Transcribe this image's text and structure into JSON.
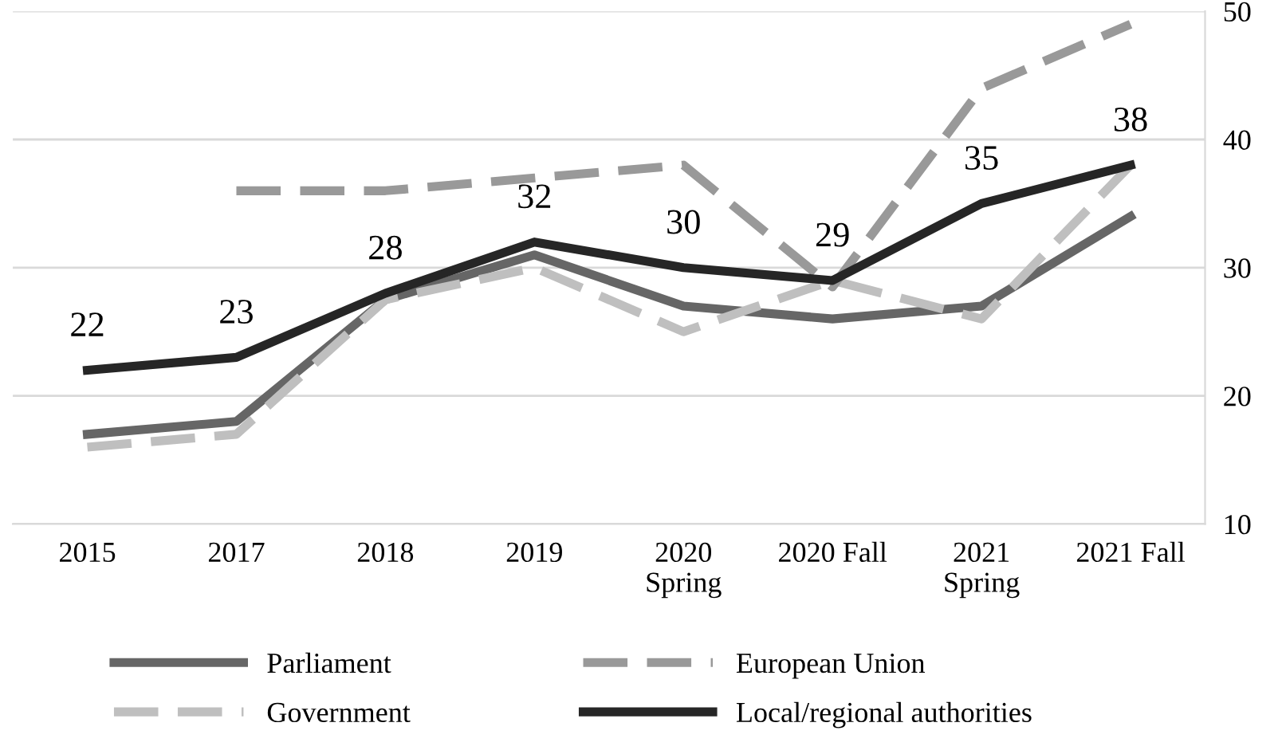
{
  "chart_data": {
    "type": "line",
    "categories": [
      "2015",
      "2017",
      "2018",
      "2019",
      "2020\nSpring",
      "2020 Fall",
      "2021\nSpring",
      "2021 Fall"
    ],
    "series": [
      {
        "name": "Parliament",
        "color": "#666666",
        "line_style": "solid",
        "values": [
          17,
          18,
          27.5,
          31,
          27,
          26,
          27,
          34
        ]
      },
      {
        "name": "Government",
        "color": "#bfbfbf",
        "line_style": "dashed",
        "values": [
          16,
          17,
          27.5,
          30,
          25,
          29,
          26,
          38
        ]
      },
      {
        "name": "European Union",
        "color": "#999999",
        "line_style": "dashed",
        "values": [
          null,
          36,
          36,
          37,
          38,
          28.5,
          44,
          49
        ]
      },
      {
        "name": "Local/regional authorities",
        "color": "#262626",
        "line_style": "solid",
        "values": [
          22,
          23,
          28,
          32,
          30,
          29,
          35,
          38
        ],
        "value_labels": [
          "22",
          "23",
          "28",
          "32",
          "30",
          "29",
          "35",
          "38"
        ]
      }
    ],
    "ylim": [
      10,
      50
    ],
    "yticks": [
      10,
      20,
      30,
      40,
      50
    ],
    "grid": "y",
    "legend": "bottom",
    "marker": "none"
  }
}
